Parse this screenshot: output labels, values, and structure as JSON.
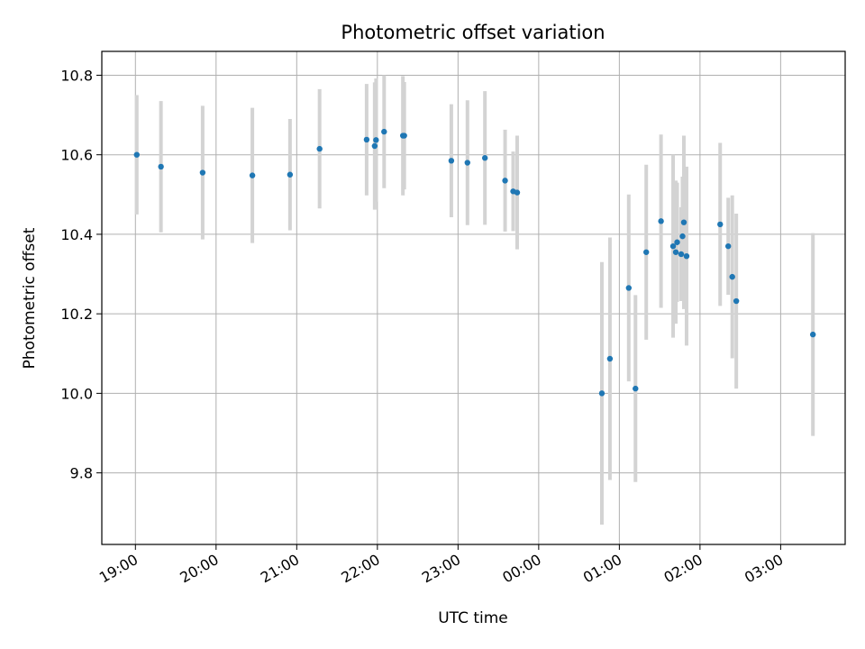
{
  "chart_data": {
    "type": "scatter",
    "title": "Photometric offset variation",
    "xlabel": "UTC time",
    "ylabel": "Photometric offset",
    "x_axis_kind": "time",
    "x_reference_date": "day 1 = evening, day 2 = after midnight",
    "xlim": [
      "18:35",
      "03:48"
    ],
    "ylim": [
      9.62,
      10.86
    ],
    "x_ticks": [
      "19:00",
      "20:00",
      "21:00",
      "22:00",
      "23:00",
      "00:00",
      "01:00",
      "02:00",
      "03:00"
    ],
    "y_ticks": [
      9.8,
      10.0,
      10.2,
      10.4,
      10.6,
      10.8
    ],
    "y_tick_labels": [
      "9.8",
      "10.0",
      "10.2",
      "10.4",
      "10.6",
      "10.8"
    ],
    "grid": true,
    "marker_color": "#1f77b4",
    "errorbar_color": "#d3d3d3",
    "points": [
      {
        "t": "19:01",
        "y": 10.6,
        "err": 0.15
      },
      {
        "t": "19:19",
        "y": 10.57,
        "err": 0.165
      },
      {
        "t": "19:50",
        "y": 10.555,
        "err": 0.168
      },
      {
        "t": "20:27",
        "y": 10.548,
        "err": 0.17
      },
      {
        "t": "20:55",
        "y": 10.55,
        "err": 0.14
      },
      {
        "t": "21:17",
        "y": 10.615,
        "err": 0.15
      },
      {
        "t": "21:52",
        "y": 10.638,
        "err": 0.14
      },
      {
        "t": "21:58",
        "y": 10.622,
        "err": 0.16
      },
      {
        "t": "21:59",
        "y": 10.637,
        "err": 0.155
      },
      {
        "t": "22:05",
        "y": 10.658,
        "err": 0.142
      },
      {
        "t": "22:19",
        "y": 10.648,
        "err": 0.15
      },
      {
        "t": "22:20",
        "y": 10.648,
        "err": 0.135
      },
      {
        "t": "22:55",
        "y": 10.585,
        "err": 0.142
      },
      {
        "t": "23:07",
        "y": 10.58,
        "err": 0.157
      },
      {
        "t": "23:20",
        "y": 10.592,
        "err": 0.168
      },
      {
        "t": "23:35",
        "y": 10.535,
        "err": 0.128
      },
      {
        "t": "23:41",
        "y": 10.508,
        "err": 0.1
      },
      {
        "t": "23:44",
        "y": 10.505,
        "err": 0.143
      },
      {
        "t": "00:47",
        "y": 10.0,
        "err": 0.33
      },
      {
        "t": "00:53",
        "y": 10.087,
        "err": 0.305
      },
      {
        "t": "01:07",
        "y": 10.265,
        "err": 0.235
      },
      {
        "t": "01:12",
        "y": 10.012,
        "err": 0.235
      },
      {
        "t": "01:20",
        "y": 10.355,
        "err": 0.22
      },
      {
        "t": "01:31",
        "y": 10.433,
        "err": 0.218
      },
      {
        "t": "01:40",
        "y": 10.37,
        "err": 0.23
      },
      {
        "t": "01:42",
        "y": 10.355,
        "err": 0.18
      },
      {
        "t": "01:43",
        "y": 10.38,
        "err": 0.15
      },
      {
        "t": "01:46",
        "y": 10.35,
        "err": 0.118
      },
      {
        "t": "01:47",
        "y": 10.395,
        "err": 0.15
      },
      {
        "t": "01:48",
        "y": 10.43,
        "err": 0.218
      },
      {
        "t": "01:50",
        "y": 10.345,
        "err": 0.225
      },
      {
        "t": "02:15",
        "y": 10.425,
        "err": 0.205
      },
      {
        "t": "02:21",
        "y": 10.37,
        "err": 0.122
      },
      {
        "t": "02:24",
        "y": 10.293,
        "err": 0.205
      },
      {
        "t": "02:27",
        "y": 10.232,
        "err": 0.22
      },
      {
        "t": "03:24",
        "y": 10.148,
        "err": 0.255
      }
    ]
  }
}
